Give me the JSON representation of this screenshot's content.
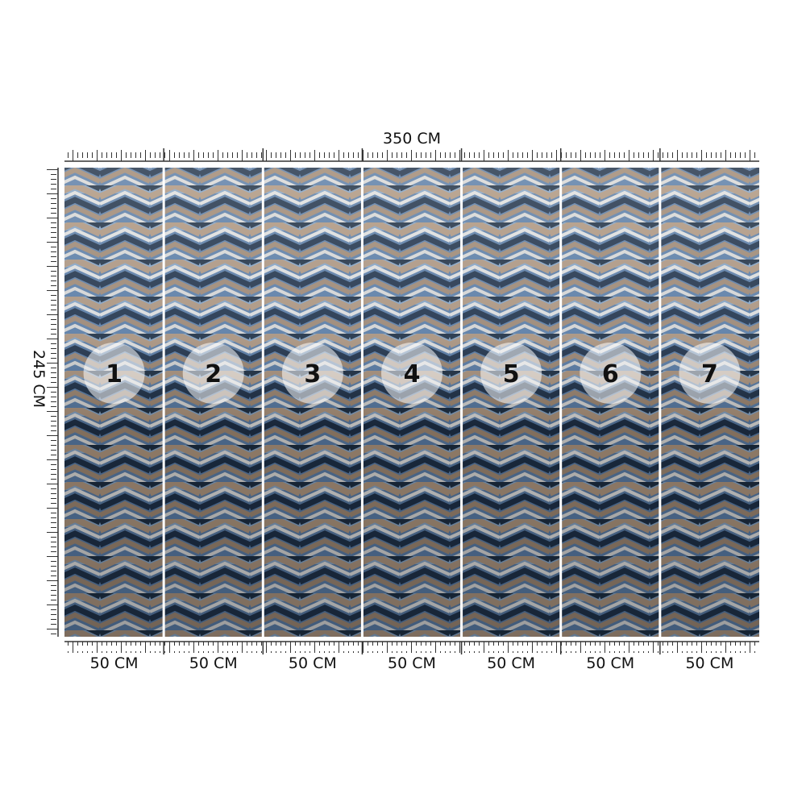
{
  "width_label": "350 CM",
  "height_label": "245 CM",
  "panels": [
    {
      "number": "1",
      "width": "50 CM"
    },
    {
      "number": "2",
      "width": "50 CM"
    },
    {
      "number": "3",
      "width": "50 CM"
    },
    {
      "number": "4",
      "width": "50 CM"
    },
    {
      "number": "5",
      "width": "50 CM"
    },
    {
      "number": "6",
      "width": "50 CM"
    },
    {
      "number": "7",
      "width": "50 CM"
    }
  ]
}
